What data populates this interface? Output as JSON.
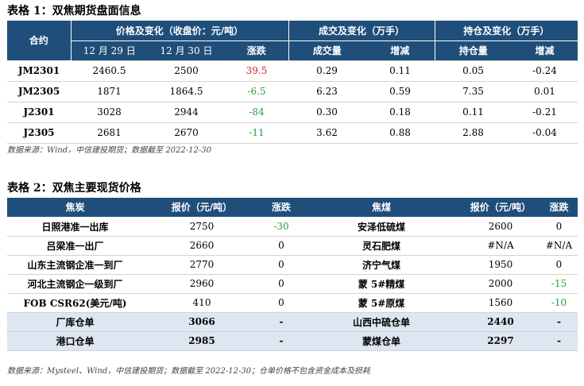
{
  "table1": {
    "title": "表格 1：双焦期货盘面信息",
    "header": {
      "contract": "合约",
      "price_group": "价格及变化（收盘价：元/吨）",
      "volume_group": "成交及变化（万手）",
      "oi_group": "持仓及变化（万手）",
      "sub": [
        "12 月 29 日",
        "12 月 30 日",
        "涨跌",
        "成交量",
        "增减",
        "持仓量",
        "增减"
      ]
    },
    "rows": [
      {
        "contract": "JM2301",
        "d29": "2460.5",
        "d30": "2500",
        "chg": "39.5",
        "chg_color": "red",
        "vol": "0.29",
        "vol_chg": "0.11",
        "oi": "0.05",
        "oi_chg": "-0.24"
      },
      {
        "contract": "JM2305",
        "d29": "1871",
        "d30": "1864.5",
        "chg": "-6.5",
        "chg_color": "green",
        "vol": "6.23",
        "vol_chg": "0.59",
        "oi": "7.35",
        "oi_chg": "0.01"
      },
      {
        "contract": "J2301",
        "d29": "3028",
        "d30": "2944",
        "chg": "-84",
        "chg_color": "green",
        "vol": "0.30",
        "vol_chg": "0.18",
        "oi": "0.11",
        "oi_chg": "-0.21"
      },
      {
        "contract": "J2305",
        "d29": "2681",
        "d30": "2670",
        "chg": "-11",
        "chg_color": "green",
        "vol": "3.62",
        "vol_chg": "0.88",
        "oi": "2.88",
        "oi_chg": "-0.04"
      }
    ],
    "source": "数据来源：Wind，中信建投期货；数据截至 2022-12-30"
  },
  "table2": {
    "title": "表格 2：双焦主要现货价格",
    "header": [
      "焦炭",
      "报价（元/吨）",
      "涨跌",
      "焦煤",
      "报价（元/吨）",
      "涨跌"
    ],
    "rows": [
      {
        "coke": "日照港准一出库",
        "coke_price": "2750",
        "coke_chg": "-30",
        "coke_chg_color": "green",
        "coal": "安泽低硫煤",
        "coal_price": "2600",
        "coal_chg": "0",
        "coal_chg_color": ""
      },
      {
        "coke": "吕梁准一出厂",
        "coke_price": "2660",
        "coke_chg": "0",
        "coke_chg_color": "",
        "coal": "灵石肥煤",
        "coal_price": "#N/A",
        "coal_chg": "#N/A",
        "coal_chg_color": ""
      },
      {
        "coke": "山东主流钢企准一到厂",
        "coke_price": "2770",
        "coke_chg": "0",
        "coke_chg_color": "",
        "coal": "济宁气煤",
        "coal_price": "1950",
        "coal_chg": "0",
        "coal_chg_color": ""
      },
      {
        "coke": "河北主流钢企一级到厂",
        "coke_price": "2960",
        "coke_chg": "0",
        "coke_chg_color": "",
        "coal": "蒙 5#精煤",
        "coal_price": "2000",
        "coal_chg": "-15",
        "coal_chg_color": "green"
      },
      {
        "coke": "FOB CSR62(美元/吨)",
        "coke_price": "410",
        "coke_chg": "0",
        "coke_chg_color": "",
        "coal": "蒙 5#原煤",
        "coal_price": "1560",
        "coal_chg": "-10",
        "coal_chg_color": "green"
      }
    ],
    "foot_rows": [
      {
        "coke": "厂库仓单",
        "coke_price": "3066",
        "coke_chg": "-",
        "coal": "山西中硫仓单",
        "coal_price": "2440",
        "coal_chg": "-"
      },
      {
        "coke": "港口仓单",
        "coke_price": "2985",
        "coke_chg": "-",
        "coal": "蒙煤仓单",
        "coal_price": "2297",
        "coal_chg": "-"
      }
    ],
    "source": "数据来源：Mysteel、Wind，中信建投期货；数据截至 2022-12-30；仓单价格不包含资金成本及损耗"
  }
}
